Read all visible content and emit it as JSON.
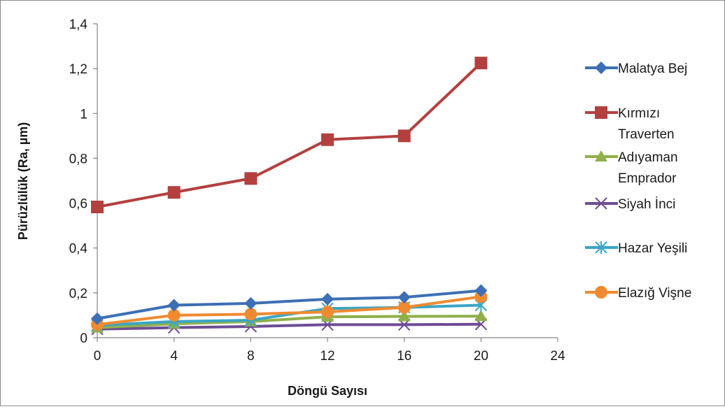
{
  "chart_data": {
    "type": "line",
    "title": "",
    "xlabel": "Döngü Sayısı",
    "ylabel": "Pürüzlülük (Ra, µm)",
    "x": [
      0,
      4,
      8,
      12,
      16,
      20
    ],
    "x_ticks": [
      "0",
      "4",
      "8",
      "12",
      "16",
      "20",
      "24"
    ],
    "xlim": [
      0,
      24
    ],
    "y_ticks": [
      "0",
      "0,2",
      "0,4",
      "0,6",
      "0,8",
      "1",
      "1,2",
      "1,4"
    ],
    "ylim": [
      0,
      1.4
    ],
    "grid": false,
    "legend_position": "right",
    "series": [
      {
        "name": "Malatya Bej",
        "legend_lines": [
          "Malatya Bej"
        ],
        "color": "#3d6fb4",
        "marker": "diamond",
        "values": [
          0.085,
          0.145,
          0.153,
          0.172,
          0.18,
          0.21
        ]
      },
      {
        "name": "Kırmızı Traverten",
        "legend_lines": [
          "Kırmızı",
          "Traverten"
        ],
        "color": "#b3403f",
        "marker": "square",
        "values": [
          0.583,
          0.648,
          0.71,
          0.883,
          0.9,
          1.225
        ]
      },
      {
        "name": "Adıyaman Emprador",
        "legend_lines": [
          "Adıyaman",
          "Emprador"
        ],
        "color": "#8fb04a",
        "marker": "triangle",
        "values": [
          0.045,
          0.062,
          0.072,
          0.093,
          0.095,
          0.096
        ]
      },
      {
        "name": "Siyah İnci",
        "legend_lines": [
          "Siyah İnci"
        ],
        "color": "#6e4d94",
        "marker": "x",
        "values": [
          0.038,
          0.045,
          0.05,
          0.058,
          0.058,
          0.06
        ]
      },
      {
        "name": "Hazar Yeşili",
        "legend_lines": [
          "Hazar Yeşili"
        ],
        "color": "#3ba5c5",
        "marker": "asterisk",
        "values": [
          0.055,
          0.072,
          0.078,
          0.13,
          0.135,
          0.145
        ]
      },
      {
        "name": "Elazığ Vişne",
        "legend_lines": [
          "Elazığ Vişne"
        ],
        "color": "#ef8a30",
        "marker": "circle",
        "values": [
          0.058,
          0.1,
          0.105,
          0.115,
          0.135,
          0.183
        ]
      }
    ]
  }
}
